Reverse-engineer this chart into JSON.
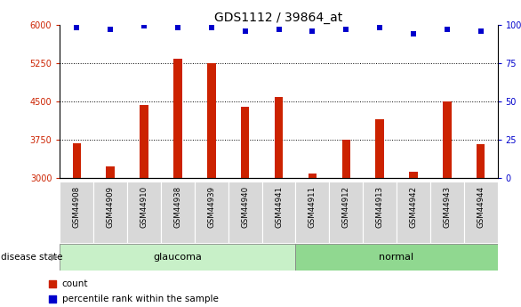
{
  "title": "GDS1112 / 39864_at",
  "samples": [
    "GSM44908",
    "GSM44909",
    "GSM44910",
    "GSM44938",
    "GSM44939",
    "GSM44940",
    "GSM44941",
    "GSM44911",
    "GSM44912",
    "GSM44913",
    "GSM44942",
    "GSM44943",
    "GSM44944"
  ],
  "counts": [
    3680,
    3230,
    4430,
    5330,
    5240,
    4390,
    4580,
    3090,
    3750,
    4150,
    3120,
    4500,
    3660
  ],
  "percentiles": [
    98,
    97,
    99,
    98,
    98,
    96,
    97,
    96,
    97,
    98,
    94,
    97,
    96
  ],
  "groups": [
    "glaucoma",
    "glaucoma",
    "glaucoma",
    "glaucoma",
    "glaucoma",
    "glaucoma",
    "glaucoma",
    "normal",
    "normal",
    "normal",
    "normal",
    "normal",
    "normal"
  ],
  "ylim_left": [
    3000,
    6000
  ],
  "ylim_right": [
    0,
    100
  ],
  "yticks_left": [
    3000,
    3750,
    4500,
    5250,
    6000
  ],
  "yticks_right": [
    0,
    25,
    50,
    75,
    100
  ],
  "bar_color": "#cc2200",
  "dot_color": "#0000cc",
  "glaucoma_color": "#c8f0c8",
  "normal_color": "#90d890",
  "bg_color": "#d8d8d8",
  "title_fontsize": 10,
  "tick_fontsize": 7,
  "label_fontsize": 8
}
